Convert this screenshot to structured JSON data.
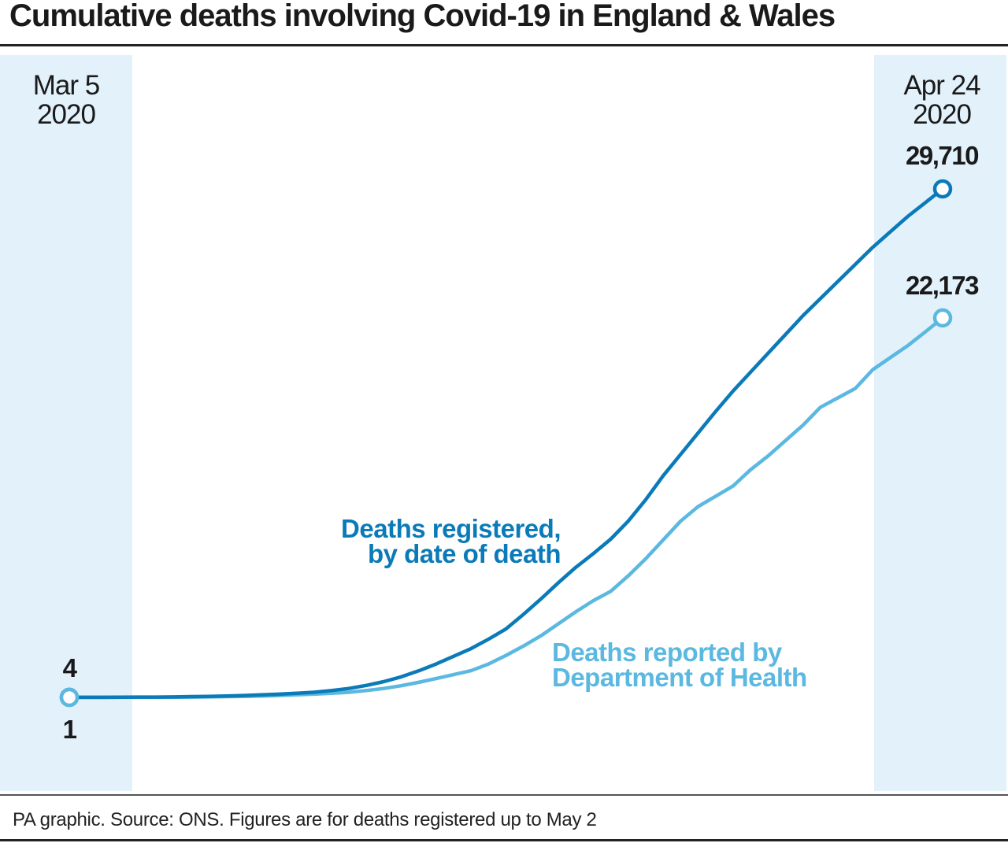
{
  "colors": {
    "band": "#e3f1fb",
    "dark_series": "#0a7ab8",
    "light_series": "#5bb8e0"
  },
  "chart_data": {
    "type": "line",
    "title": "Cumulative deaths involving Covid-19 in England & Wales",
    "x_start_label": [
      "Mar 5",
      "2020"
    ],
    "x_end_label": [
      "Apr 24",
      "2020"
    ],
    "x": [
      "2020-03-05",
      "2020-03-06",
      "2020-03-07",
      "2020-03-08",
      "2020-03-09",
      "2020-03-10",
      "2020-03-11",
      "2020-03-12",
      "2020-03-13",
      "2020-03-14",
      "2020-03-15",
      "2020-03-16",
      "2020-03-17",
      "2020-03-18",
      "2020-03-19",
      "2020-03-20",
      "2020-03-21",
      "2020-03-22",
      "2020-03-23",
      "2020-03-24",
      "2020-03-25",
      "2020-03-26",
      "2020-03-27",
      "2020-03-28",
      "2020-03-29",
      "2020-03-30",
      "2020-03-31",
      "2020-04-01",
      "2020-04-02",
      "2020-04-03",
      "2020-04-04",
      "2020-04-05",
      "2020-04-06",
      "2020-04-07",
      "2020-04-08",
      "2020-04-09",
      "2020-04-10",
      "2020-04-11",
      "2020-04-12",
      "2020-04-13",
      "2020-04-14",
      "2020-04-15",
      "2020-04-16",
      "2020-04-17",
      "2020-04-18",
      "2020-04-19",
      "2020-04-20",
      "2020-04-21",
      "2020-04-22",
      "2020-04-23",
      "2020-04-24"
    ],
    "ylim": [
      0,
      29710
    ],
    "grid": false,
    "series": [
      {
        "name": "Deaths registered, by date of death",
        "label_lines": [
          "Deaths registered,",
          "by date of death"
        ],
        "color": "#0a7ab8",
        "start_label": "4",
        "end_label": "29,710",
        "values": [
          4,
          5,
          6,
          10,
          15,
          20,
          30,
          45,
          60,
          80,
          110,
          150,
          190,
          240,
          300,
          400,
          520,
          700,
          920,
          1200,
          1550,
          1950,
          2400,
          2850,
          3400,
          4000,
          4850,
          5750,
          6700,
          7600,
          8400,
          9250,
          10300,
          11550,
          12950,
          14200,
          15450,
          16700,
          17900,
          19000,
          20100,
          21200,
          22300,
          23300,
          24300,
          25300,
          26300,
          27200,
          28100,
          28900,
          29710
        ]
      },
      {
        "name": "Deaths reported by Department of Health",
        "label_lines": [
          "Deaths reported by",
          "Department of Health"
        ],
        "color": "#5bb8e0",
        "start_label": "1",
        "end_label": "22,173",
        "values": [
          1,
          1,
          2,
          3,
          5,
          8,
          12,
          20,
          30,
          45,
          60,
          80,
          110,
          150,
          190,
          240,
          300,
          400,
          520,
          680,
          880,
          1100,
          1330,
          1560,
          1950,
          2450,
          3000,
          3600,
          4300,
          5000,
          5650,
          6200,
          7100,
          8100,
          9200,
          10300,
          11150,
          11750,
          12350,
          13300,
          14100,
          15000,
          15900,
          16950,
          17500,
          18050,
          19150,
          19850,
          20550,
          21350,
          22173
        ]
      }
    ]
  },
  "footer": "PA graphic. Source: ONS. Figures are for deaths registered up to May 2"
}
